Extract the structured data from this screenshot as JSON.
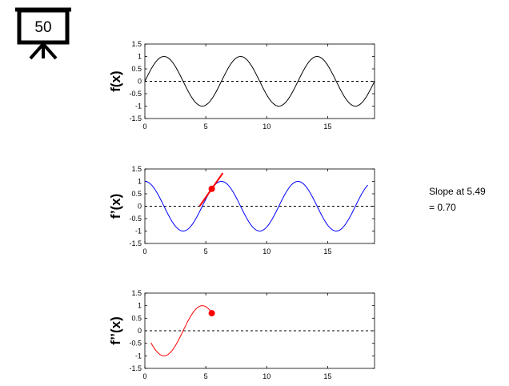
{
  "board": {
    "number": "50",
    "icon": "presentation-board-icon"
  },
  "annotation": {
    "line1": "Slope at 5.49",
    "line2": "= 0.70"
  },
  "colors": {
    "f": "#000000",
    "fprime": "#0000ff",
    "fsecond": "#ff0000",
    "tangent": "#ff0000",
    "zero_line": "#000000"
  },
  "chart_data": [
    {
      "type": "line",
      "ylabel": "f(x)",
      "xlim": [
        0,
        18.85
      ],
      "ylim": [
        -1.5,
        1.5
      ],
      "xticks": [
        0,
        5,
        10,
        15
      ],
      "yticks": [
        1.5,
        1,
        0.5,
        0,
        -0.5,
        -1,
        -1.5
      ],
      "series": [
        {
          "function": "sin",
          "x_range": [
            0,
            18.85
          ],
          "color": "#000000"
        }
      ],
      "zero_line": {
        "y": 0,
        "style": "dashed"
      }
    },
    {
      "type": "line",
      "ylabel": "f’(x)",
      "xlim": [
        0,
        18.85
      ],
      "ylim": [
        -1.5,
        1.5
      ],
      "xticks": [
        0,
        5,
        10,
        15
      ],
      "yticks": [
        1.5,
        1,
        0.5,
        0,
        -0.5,
        -1,
        -1.5
      ],
      "series": [
        {
          "function": "sin(x+1.57)",
          "x_range": [
            0,
            18.3
          ],
          "color": "#0000ff"
        }
      ],
      "zero_line": {
        "y": 0,
        "style": "dashed"
      },
      "marker": {
        "x": 5.49,
        "y": 0.7,
        "color": "#ff0000"
      },
      "tangent": {
        "x0": 5.49,
        "y0": 0.7,
        "slope": 0.7,
        "x_range": [
          4.5,
          6.4
        ],
        "color": "#ff0000"
      }
    },
    {
      "type": "line",
      "ylabel": "f’’(x)",
      "xlim": [
        0,
        18.85
      ],
      "ylim": [
        -1.5,
        1.5
      ],
      "xticks": [
        0,
        5,
        10,
        15
      ],
      "yticks": [
        1.5,
        1,
        0.5,
        0,
        -0.5,
        -1,
        -1.5
      ],
      "series": [
        {
          "function": "sin(x+3.14)",
          "x_range": [
            0.5,
            5.49
          ],
          "color": "#ff0000"
        }
      ],
      "zero_line": {
        "y": 0,
        "style": "dashed"
      },
      "marker": {
        "x": 5.49,
        "y": 0.7,
        "color": "#ff0000"
      }
    }
  ]
}
